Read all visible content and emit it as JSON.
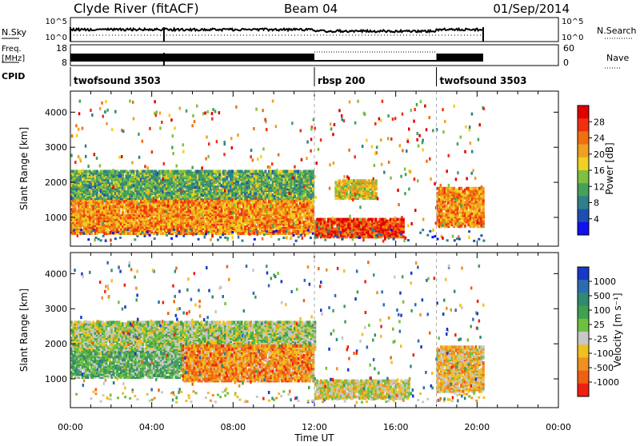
{
  "header": {
    "station": "Clyde River (fitACF)",
    "beam": "Beam 04",
    "date": "01/Sep/2014"
  },
  "nsky_panel": {
    "left_label": "N.Sky",
    "left_ticks": [
      "10^5",
      "10^0"
    ],
    "right_ticks": [
      "10^5",
      "10^0"
    ],
    "right_label": "N.Search"
  },
  "freq_panel": {
    "left_label_top": "Freq.",
    "left_label_bottom": "[MHz]",
    "left_ticks": [
      "18",
      "8"
    ],
    "right_ticks": [
      "60",
      "0"
    ],
    "right_label": "Nave"
  },
  "cpid_panel": {
    "label": "CPID",
    "segments": [
      {
        "name": "twofsound 3503",
        "start_h": 0,
        "end_h": 12.0
      },
      {
        "name": "rbsp 200",
        "start_h": 12.0,
        "end_h": 18.0
      },
      {
        "name": "twofsound 3503",
        "start_h": 18.0,
        "end_h": 20.3
      }
    ]
  },
  "time_axis": {
    "label": "Time UT",
    "ticks": [
      "00:00",
      "04:00",
      "08:00",
      "12:00",
      "16:00",
      "20:00",
      "00:00"
    ],
    "range_h": [
      0,
      24
    ],
    "data_end_h": 20.3
  },
  "chart_data": [
    {
      "type": "heatmap",
      "title": "",
      "xlabel": "Time UT",
      "ylabel": "Slant Range [km]",
      "x_range_h": [
        0,
        24
      ],
      "ylim": [
        180,
        4600
      ],
      "yticks": [
        1000,
        2000,
        3000,
        4000
      ],
      "colorbar": {
        "label": "Power [dB]",
        "ticks": [
          "4",
          "8",
          "12",
          "16",
          "20",
          "24",
          "28"
        ],
        "colors": [
          "#1010f0",
          "#1e4fb0",
          "#2f7f8a",
          "#44a05a",
          "#80c040",
          "#f0d020",
          "#f0a020",
          "#f07010",
          "#f03010",
          "#e00000"
        ]
      },
      "regions": [
        {
          "t0": 0.0,
          "t1": 11.9,
          "r0": 500,
          "r1": 1500,
          "value": 22
        },
        {
          "t0": 0.0,
          "t1": 11.9,
          "r0": 1500,
          "r1": 2300,
          "value": 12
        },
        {
          "t0": 12.0,
          "t1": 16.4,
          "r0": 400,
          "r1": 900,
          "value": 27
        },
        {
          "t0": 13.0,
          "t1": 15.0,
          "r0": 1500,
          "r1": 2000,
          "value": 18
        },
        {
          "t0": 18.0,
          "t1": 20.3,
          "r0": 700,
          "r1": 1800,
          "value": 22
        }
      ]
    },
    {
      "type": "heatmap",
      "title": "",
      "xlabel": "Time UT",
      "ylabel": "Slant Range [km]",
      "x_range_h": [
        0,
        24
      ],
      "ylim": [
        180,
        4600
      ],
      "yticks": [
        1000,
        2000,
        3000,
        4000
      ],
      "colorbar": {
        "label": "Velocity [m s⁻¹]",
        "ticks": [
          "1000",
          "500",
          "100",
          "25",
          "-25",
          "-100",
          "-500",
          "-1000"
        ],
        "colors": [
          "#1838c8",
          "#2d6cb0",
          "#2f8a70",
          "#40a050",
          "#70c040",
          "#c8c8c8",
          "#f0c020",
          "#f09020",
          "#f06010",
          "#f02010"
        ]
      },
      "regions": [
        {
          "t0": 0.0,
          "t1": 5.5,
          "r0": 1000,
          "r1": 1800,
          "value": 200
        },
        {
          "t0": 0.0,
          "t1": 12.0,
          "r0": 1800,
          "r1": 2600,
          "value": 0
        },
        {
          "t0": 5.5,
          "t1": 11.9,
          "r0": 900,
          "r1": 1900,
          "value": -500
        },
        {
          "t0": 12.0,
          "t1": 16.6,
          "r0": 400,
          "r1": 900,
          "value": -150
        },
        {
          "t0": 18.0,
          "t1": 20.3,
          "r0": 600,
          "r1": 1900,
          "value": -300
        }
      ]
    }
  ]
}
